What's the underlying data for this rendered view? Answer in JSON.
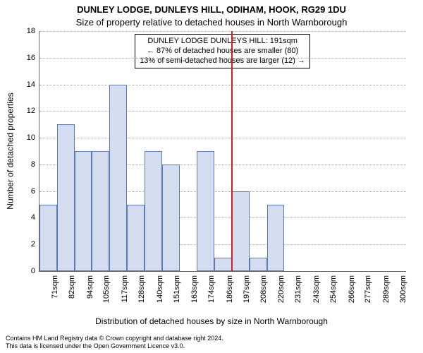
{
  "title_line1": "DUNLEY LODGE, DUNLEYS HILL, ODIHAM, HOOK, RG29 1DU",
  "title_line2": "Size of property relative to detached houses in North Warnborough",
  "ylabel": "Number of detached properties",
  "xlabel": "Distribution of detached houses by size in North Warnborough",
  "footer_line1": "Contains HM Land Registry data © Crown copyright and database right 2024.",
  "footer_line2": "This data is licensed under the Open Government Licence v3.0.",
  "info_box": {
    "line1": "DUNLEY LODGE DUNLEYS HILL: 191sqm",
    "line2": "← 87% of detached houses are smaller (80)",
    "line3": "13% of semi-detached houses are larger (12) →"
  },
  "chart": {
    "type": "histogram",
    "x_min": 65,
    "x_max": 306,
    "y_min": 0,
    "y_max": 18,
    "y_tick_step": 2,
    "bar_fill": "#d3ddef",
    "bar_stroke": "#5b7bb2",
    "marker_x": 191,
    "marker_color": "#d02020",
    "grid_color": "#666666",
    "x_ticks": [
      71,
      82,
      94,
      105,
      117,
      128,
      140,
      151,
      163,
      174,
      186,
      197,
      208,
      220,
      231,
      243,
      254,
      266,
      277,
      289,
      300
    ],
    "x_tick_suffix": "sqm",
    "bin_width": 11.5,
    "bars": [
      {
        "x": 65,
        "v": 5
      },
      {
        "x": 76.5,
        "v": 11
      },
      {
        "x": 88,
        "v": 9
      },
      {
        "x": 99.5,
        "v": 9
      },
      {
        "x": 111,
        "v": 14
      },
      {
        "x": 122.5,
        "v": 5
      },
      {
        "x": 134,
        "v": 9
      },
      {
        "x": 145.5,
        "v": 8
      },
      {
        "x": 157,
        "v": 0
      },
      {
        "x": 168.5,
        "v": 9
      },
      {
        "x": 180,
        "v": 1
      },
      {
        "x": 191.5,
        "v": 6
      },
      {
        "x": 203,
        "v": 1
      },
      {
        "x": 214.5,
        "v": 5
      },
      {
        "x": 226,
        "v": 0
      },
      {
        "x": 237.5,
        "v": 0
      },
      {
        "x": 249,
        "v": 0
      },
      {
        "x": 260.5,
        "v": 0
      },
      {
        "x": 272,
        "v": 0
      },
      {
        "x": 283.5,
        "v": 0
      },
      {
        "x": 295,
        "v": 0
      }
    ]
  }
}
